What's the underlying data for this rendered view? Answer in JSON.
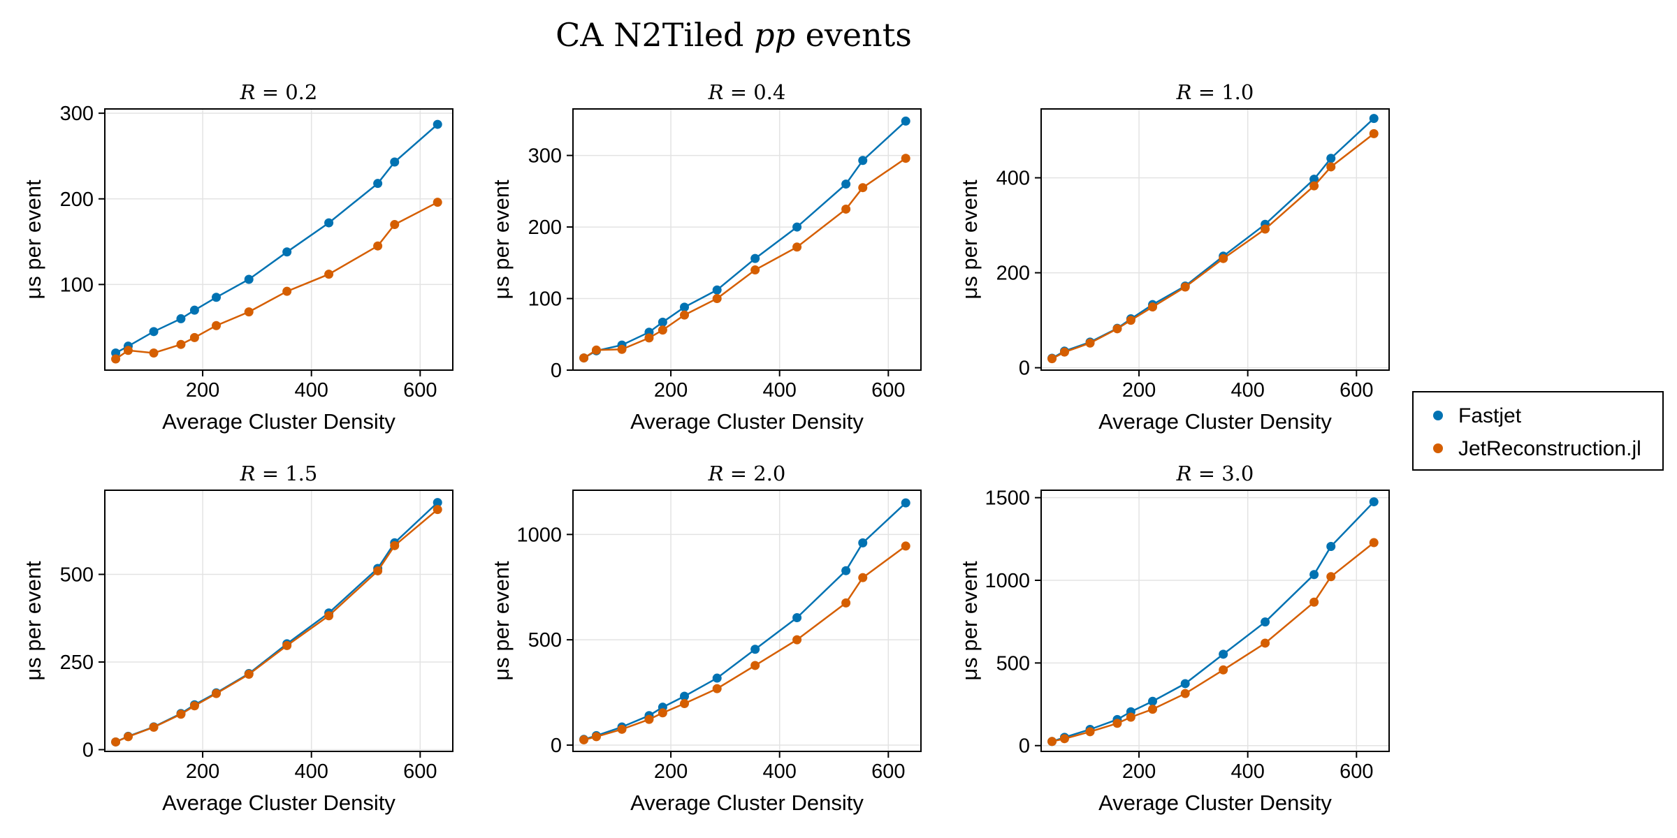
{
  "figure": {
    "title_prefix": "CA N2Tiled ",
    "title_italic": "pp",
    "title_suffix": " events"
  },
  "legend": {
    "items": [
      {
        "label": "Fastjet",
        "color": "#0072B2"
      },
      {
        "label": "JetReconstruction.jl",
        "color": "#D55E00"
      }
    ]
  },
  "chart_data": [
    {
      "type": "line",
      "title_var": "R",
      "title_value": "0.2",
      "xlabel": "Average Cluster Density",
      "ylabel": "μs per event",
      "x": [
        40,
        63,
        110,
        160,
        185,
        225,
        285,
        355,
        432,
        522,
        553,
        632
      ],
      "xlim": [
        20,
        660
      ],
      "ylim": [
        0,
        305
      ],
      "xticks": [
        200,
        400,
        600
      ],
      "yticks": [
        100,
        200,
        300
      ],
      "grid": true,
      "series": [
        {
          "name": "Fastjet",
          "color": "#0072B2",
          "values": [
            20,
            28,
            45,
            60,
            70,
            85,
            106,
            138,
            172,
            218,
            243,
            287
          ]
        },
        {
          "name": "JetReconstruction.jl",
          "color": "#D55E00",
          "values": [
            13,
            23,
            20,
            30,
            38,
            52,
            68,
            92,
            112,
            145,
            170,
            196
          ]
        }
      ]
    },
    {
      "type": "line",
      "title_var": "R",
      "title_value": "0.4",
      "xlabel": "Average Cluster Density",
      "ylabel": "μs per event",
      "x": [
        40,
        63,
        110,
        160,
        185,
        225,
        285,
        355,
        432,
        522,
        553,
        632
      ],
      "xlim": [
        20,
        660
      ],
      "ylim": [
        0,
        365
      ],
      "xticks": [
        200,
        400,
        600
      ],
      "yticks": [
        0,
        100,
        200,
        300
      ],
      "grid": true,
      "series": [
        {
          "name": "Fastjet",
          "color": "#0072B2",
          "values": [
            17,
            27,
            35,
            53,
            67,
            88,
            112,
            156,
            200,
            260,
            293,
            348
          ]
        },
        {
          "name": "JetReconstruction.jl",
          "color": "#D55E00",
          "values": [
            17,
            28,
            29,
            45,
            56,
            77,
            100,
            140,
            172,
            225,
            255,
            296
          ]
        }
      ]
    },
    {
      "type": "line",
      "title_var": "R",
      "title_value": "1.0",
      "xlabel": "Average Cluster Density",
      "ylabel": "μs per event",
      "x": [
        40,
        63,
        110,
        160,
        185,
        225,
        285,
        355,
        432,
        522,
        553,
        632
      ],
      "xlim": [
        20,
        660
      ],
      "ylim": [
        -5,
        545
      ],
      "xticks": [
        200,
        400,
        600
      ],
      "yticks": [
        0,
        200,
        400
      ],
      "grid": true,
      "series": [
        {
          "name": "Fastjet",
          "color": "#0072B2",
          "values": [
            20,
            35,
            54,
            83,
            103,
            133,
            172,
            235,
            302,
            397,
            441,
            525
          ]
        },
        {
          "name": "JetReconstruction.jl",
          "color": "#D55E00",
          "values": [
            19,
            33,
            52,
            82,
            100,
            128,
            170,
            230,
            292,
            383,
            423,
            493
          ]
        }
      ]
    },
    {
      "type": "line",
      "title_var": "R",
      "title_value": "1.5",
      "xlabel": "Average Cluster Density",
      "ylabel": "μs per event",
      "x": [
        40,
        63,
        110,
        160,
        185,
        225,
        285,
        355,
        432,
        522,
        553,
        632
      ],
      "xlim": [
        20,
        660
      ],
      "ylim": [
        -5,
        740
      ],
      "xticks": [
        200,
        400,
        600
      ],
      "yticks": [
        0,
        250,
        500
      ],
      "grid": true,
      "series": [
        {
          "name": "Fastjet",
          "color": "#0072B2",
          "values": [
            22,
            38,
            65,
            103,
            128,
            162,
            217,
            302,
            390,
            517,
            590,
            705
          ]
        },
        {
          "name": "JetReconstruction.jl",
          "color": "#D55E00",
          "values": [
            22,
            37,
            64,
            101,
            125,
            160,
            215,
            297,
            382,
            510,
            582,
            685
          ]
        }
      ]
    },
    {
      "type": "line",
      "title_var": "R",
      "title_value": "2.0",
      "xlabel": "Average Cluster Density",
      "ylabel": "μs per event",
      "x": [
        40,
        63,
        110,
        160,
        185,
        225,
        285,
        355,
        432,
        522,
        553,
        632
      ],
      "xlim": [
        20,
        660
      ],
      "ylim": [
        -30,
        1210
      ],
      "xticks": [
        200,
        400,
        600
      ],
      "yticks": [
        0,
        500,
        1000
      ],
      "grid": true,
      "series": [
        {
          "name": "Fastjet",
          "color": "#0072B2",
          "values": [
            27,
            45,
            86,
            140,
            180,
            232,
            318,
            455,
            605,
            828,
            960,
            1150
          ]
        },
        {
          "name": "JetReconstruction.jl",
          "color": "#D55E00",
          "values": [
            25,
            40,
            75,
            122,
            153,
            197,
            268,
            378,
            500,
            675,
            795,
            945
          ]
        }
      ]
    },
    {
      "type": "line",
      "title_var": "R",
      "title_value": "3.0",
      "xlabel": "Average Cluster Density",
      "ylabel": "μs per event",
      "x": [
        40,
        63,
        110,
        160,
        185,
        225,
        285,
        355,
        432,
        522,
        553,
        632
      ],
      "xlim": [
        20,
        660
      ],
      "ylim": [
        -35,
        1545
      ],
      "xticks": [
        200,
        400,
        600
      ],
      "yticks": [
        0,
        500,
        1000,
        1500
      ],
      "grid": true,
      "series": [
        {
          "name": "Fastjet",
          "color": "#0072B2",
          "values": [
            25,
            50,
            98,
            158,
            205,
            268,
            375,
            553,
            748,
            1035,
            1205,
            1475
          ]
        },
        {
          "name": "JetReconstruction.jl",
          "color": "#D55E00",
          "values": [
            25,
            42,
            84,
            135,
            172,
            220,
            315,
            458,
            620,
            868,
            1022,
            1228
          ]
        }
      ]
    }
  ]
}
